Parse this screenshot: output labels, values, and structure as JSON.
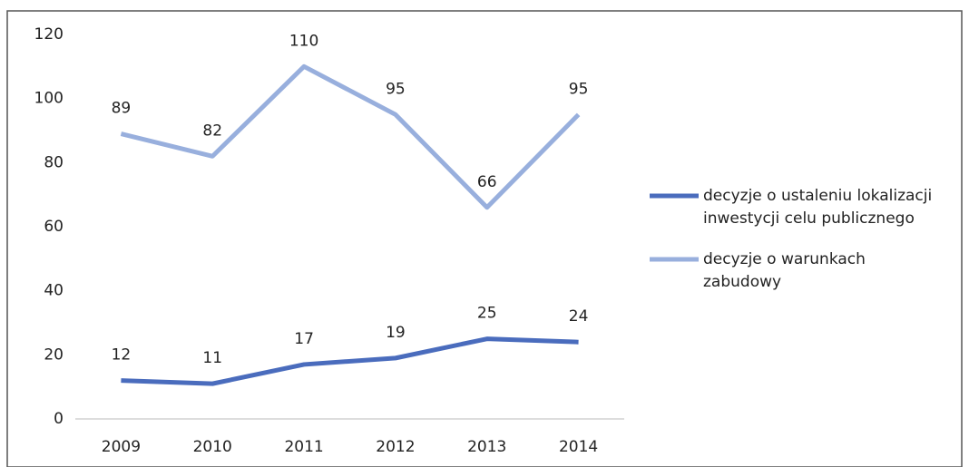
{
  "chart_data": {
    "type": "line",
    "categories": [
      "2009",
      "2010",
      "2011",
      "2012",
      "2013",
      "2014"
    ],
    "series": [
      {
        "name": "decyzje o ustaleniu lokalizacji inwestycji celu publicznego",
        "color": "#4a6cbd",
        "values": [
          12,
          11,
          17,
          19,
          25,
          24
        ]
      },
      {
        "name": "decyzje o warunkach zabudowy",
        "color": "#98afdd",
        "values": [
          89,
          82,
          110,
          95,
          66,
          95
        ]
      }
    ],
    "ylim": [
      0,
      120
    ],
    "yticks": [
      0,
      20,
      40,
      60,
      80,
      100,
      120
    ],
    "grid": false,
    "legend": "right"
  }
}
